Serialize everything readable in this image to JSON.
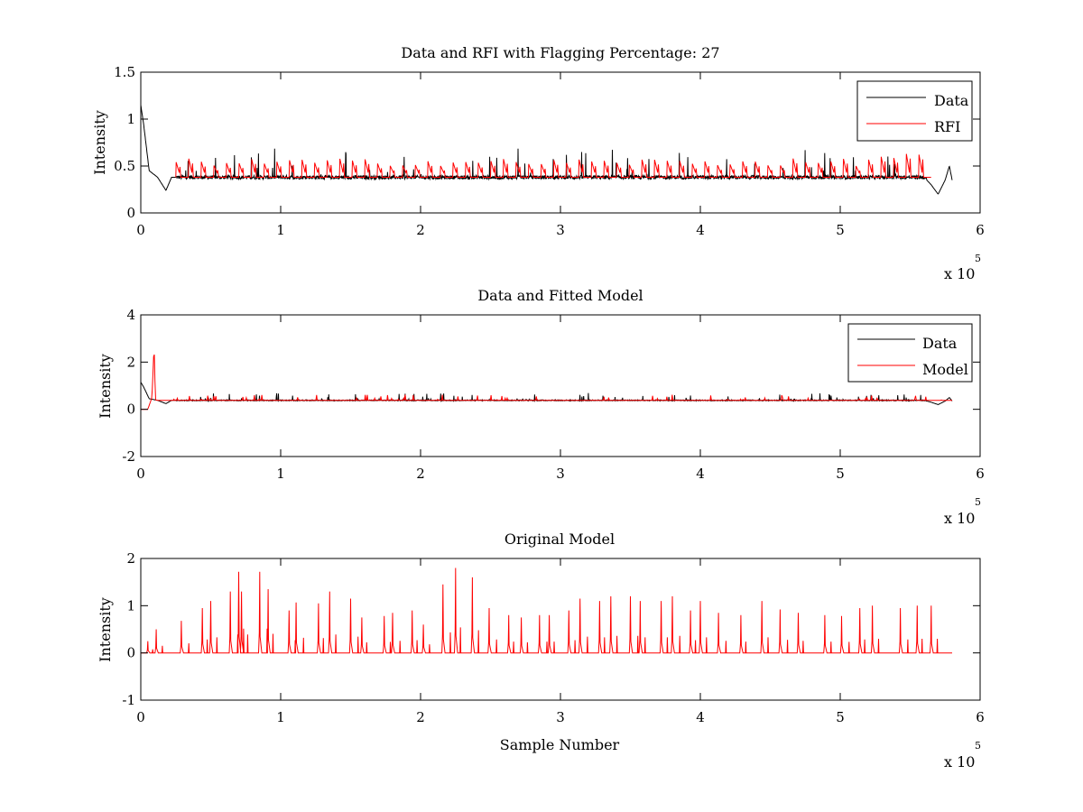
{
  "chart_data": [
    {
      "type": "line",
      "title": "Data and RFI with Flagging Percentage: 27",
      "ylabel": "Intensity",
      "xlabel": "",
      "xlim": [
        0,
        600000
      ],
      "ylim": [
        0,
        1.5
      ],
      "x_ticks": [
        0,
        1,
        2,
        3,
        4,
        5,
        6
      ],
      "y_ticks": [
        0,
        0.5,
        1,
        1.5
      ],
      "x_exponent_label": "x 10",
      "x_exponent": "5",
      "legend": {
        "placement": "top-right",
        "entries": [
          "Data",
          "RFI"
        ]
      },
      "grid": false,
      "series": [
        {
          "name": "Data",
          "color": "#000000",
          "baseline": 0.38,
          "x": [
            0,
            2000,
            6000,
            12000,
            18000,
            22000,
            30000,
            560000,
            565000,
            570000,
            575000,
            578000,
            580000
          ],
          "values": [
            1.15,
            0.95,
            0.45,
            0.38,
            0.24,
            0.38,
            0.38,
            0.38,
            0.3,
            0.2,
            0.35,
            0.5,
            0.35
          ]
        },
        {
          "name": "RFI",
          "color": "#ff0000",
          "baseline": 0.38,
          "x_range": [
            25000,
            560000
          ],
          "typical_peak": 0.5,
          "max_peak": 0.62
        }
      ]
    },
    {
      "type": "line",
      "title": "Data and Fitted Model",
      "ylabel": "Intensity",
      "xlabel": "",
      "xlim": [
        0,
        600000
      ],
      "ylim": [
        -2,
        4
      ],
      "x_ticks": [
        0,
        1,
        2,
        3,
        4,
        5,
        6
      ],
      "y_ticks": [
        -2,
        0,
        2,
        4
      ],
      "x_exponent_label": "x 10",
      "x_exponent": "5",
      "legend": {
        "placement": "top-right",
        "entries": [
          "Data",
          "Model"
        ]
      },
      "grid": false,
      "series": [
        {
          "name": "Data",
          "color": "#000000",
          "baseline": 0.38,
          "x": [
            0,
            2000,
            6000,
            12000,
            18000,
            22000,
            30000,
            560000,
            565000,
            570000,
            575000,
            578000,
            580000
          ],
          "values": [
            1.15,
            0.95,
            0.45,
            0.38,
            0.24,
            0.38,
            0.38,
            0.38,
            0.3,
            0.2,
            0.35,
            0.5,
            0.35
          ]
        },
        {
          "name": "Model",
          "color": "#ff0000",
          "baseline": 0.38,
          "x": [
            0,
            5000,
            8000,
            9500,
            10500,
            12000,
            580000
          ],
          "values": [
            0.0,
            0.0,
            0.5,
            2.7,
            0.4,
            0.38,
            0.38
          ]
        }
      ]
    },
    {
      "type": "line",
      "title": "Original Model",
      "ylabel": "Intensity",
      "xlabel": "Sample Number",
      "xlim": [
        0,
        600000
      ],
      "ylim": [
        -1,
        2
      ],
      "x_ticks": [
        0,
        1,
        2,
        3,
        4,
        5,
        6
      ],
      "y_ticks": [
        -1,
        0,
        1,
        2
      ],
      "x_exponent_label": "x 10",
      "x_exponent": "5",
      "grid": false,
      "series": [
        {
          "name": "Original Model",
          "color": "#ff0000",
          "baseline": 0,
          "x_range": [
            0,
            580000
          ],
          "peaks_x": [
            5000,
            11000,
            29000,
            44000,
            50000,
            64000,
            70000,
            72000,
            85000,
            91000,
            106000,
            111000,
            127000,
            135000,
            150000,
            158000,
            174000,
            180000,
            194000,
            202000,
            216000,
            225000,
            237000,
            249000,
            263000,
            272000,
            285000,
            292000,
            306000,
            314000,
            328000,
            336000,
            350000,
            357000,
            372000,
            380000,
            393000,
            400000,
            413000,
            429000,
            444000,
            457000,
            470000,
            489000,
            501000,
            514000,
            523000,
            543000,
            555000,
            565000
          ],
          "peaks_y": [
            0.25,
            0.5,
            0.68,
            0.95,
            1.1,
            1.3,
            1.72,
            1.3,
            1.72,
            1.35,
            0.9,
            1.07,
            1.05,
            1.3,
            1.15,
            0.75,
            0.78,
            0.85,
            0.9,
            0.6,
            1.45,
            1.8,
            1.6,
            0.95,
            0.8,
            0.75,
            0.8,
            0.8,
            0.9,
            1.15,
            1.1,
            1.2,
            1.2,
            1.1,
            1.1,
            1.2,
            0.9,
            1.1,
            0.85,
            0.8,
            1.1,
            0.92,
            0.85,
            0.8,
            0.78,
            0.95,
            1.0,
            0.95,
            1.0,
            1.0
          ]
        }
      ]
    }
  ]
}
